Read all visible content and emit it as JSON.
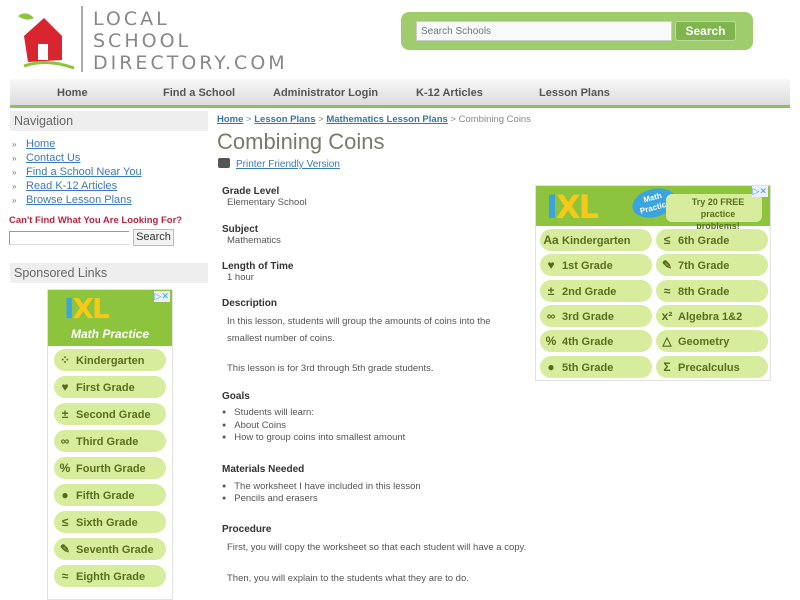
{
  "logo": {
    "lines": [
      "LOCAL",
      "SCHOOL",
      "DIRECTORY.COM"
    ]
  },
  "search": {
    "placeholder": "Search Schools",
    "button": "Search"
  },
  "nav": [
    "Home",
    "Find a School",
    "Administrator Login",
    "K-12 Articles",
    "Lesson Plans"
  ],
  "sidebar": {
    "navigation_title": "Navigation",
    "links": [
      "Home",
      "Contact Us",
      "Find a School Near You",
      "Read K-12 Articles",
      "Browse Lesson Plans"
    ],
    "cant_find": "Can't Find What You Are Looking For?",
    "search_button": "Search",
    "sponsored_title": "Sponsored Links"
  },
  "ad_left": {
    "brand": "IXL",
    "tagline": "Math Practice",
    "items": [
      {
        "icon": "dots",
        "label": "Kindergarten"
      },
      {
        "icon": "cup",
        "label": "First Grade"
      },
      {
        "icon": "±",
        "label": "Second Grade"
      },
      {
        "icon": "∞",
        "label": "Third Grade"
      },
      {
        "icon": "%",
        "label": "Fourth Grade"
      },
      {
        "icon": "apple",
        "label": "Fifth Grade"
      },
      {
        "icon": "≤",
        "label": "Sixth Grade"
      },
      {
        "icon": "pencil",
        "label": "Seventh Grade"
      },
      {
        "icon": "≈",
        "label": "Eighth Grade"
      }
    ]
  },
  "ad_right": {
    "brand": "IXL",
    "badge": "Math Practice",
    "promo": "Try 20 FREE practice problems!",
    "items": [
      {
        "icon": "Aa",
        "label": "Kindergarten"
      },
      {
        "icon": "≤",
        "label": "6th Grade"
      },
      {
        "icon": "cup",
        "label": "1st Grade"
      },
      {
        "icon": "pencil",
        "label": "7th Grade"
      },
      {
        "icon": "±",
        "label": "2nd Grade"
      },
      {
        "icon": "≈",
        "label": "8th Grade"
      },
      {
        "icon": "∞",
        "label": "3rd Grade"
      },
      {
        "icon": "x²",
        "label": "Algebra 1&2"
      },
      {
        "icon": "%",
        "label": "4th Grade"
      },
      {
        "icon": "△",
        "label": "Geometry"
      },
      {
        "icon": "apple",
        "label": "5th Grade"
      },
      {
        "icon": "Σ",
        "label": "Precalculus"
      }
    ]
  },
  "breadcrumb": {
    "links": [
      "Home",
      "Lesson Plans",
      "Mathematics Lesson Plans"
    ],
    "current": "Combining Coins",
    "sep": ">"
  },
  "page": {
    "title": "Combining Coins",
    "printer_link": "Printer Friendly Version",
    "grade_label": "Grade Level",
    "grade": "Elementary School",
    "subject_label": "Subject",
    "subject": "Mathematics",
    "length_label": "Length of Time",
    "length": "1 hour",
    "description_label": "Description",
    "description_1": "In this lesson, students will group the amounts of coins into the",
    "description_2": "smallest number of coins.",
    "description_3": "This lesson is for 3rd through 5th grade students.",
    "goals_label": "Goals",
    "goals": [
      "Students will learn:",
      "About Coins",
      "How to group coins into smallest amount"
    ],
    "materials_label": "Materials Needed",
    "materials": [
      "The worksheet I have included in this lesson",
      "Pencils and erasers"
    ],
    "procedure_label": "Procedure",
    "procedure_1": "First, you will copy the worksheet so that each student will have a copy.",
    "procedure_2": "Then, you will explain to the students what they are to do."
  }
}
